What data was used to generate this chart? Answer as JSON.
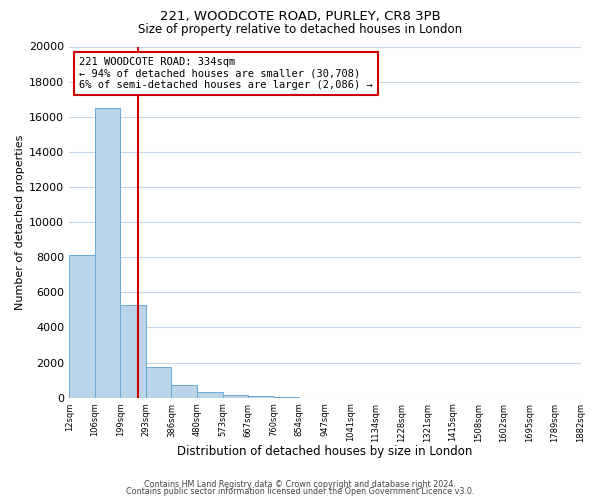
{
  "title1": "221, WOODCOTE ROAD, PURLEY, CR8 3PB",
  "title2": "Size of property relative to detached houses in London",
  "xlabel": "Distribution of detached houses by size in London",
  "ylabel": "Number of detached properties",
  "bar_heights": [
    8100,
    16500,
    5300,
    1750,
    750,
    300,
    150,
    100,
    50,
    0,
    0,
    0,
    0,
    0,
    0,
    0,
    0,
    0,
    0,
    0
  ],
  "bin_labels": [
    "12sqm",
    "106sqm",
    "199sqm",
    "293sqm",
    "386sqm",
    "480sqm",
    "573sqm",
    "667sqm",
    "760sqm",
    "854sqm",
    "947sqm",
    "1041sqm",
    "1134sqm",
    "1228sqm",
    "1321sqm",
    "1415sqm",
    "1508sqm",
    "1602sqm",
    "1695sqm",
    "1789sqm",
    "1882sqm"
  ],
  "bar_color": "#bcd4ea",
  "bar_edge_color": "#6aaad4",
  "vline_x_bin": 2.7,
  "vline_color": "#cc0000",
  "annotation_title": "221 WOODCOTE ROAD: 334sqm",
  "annotation_line1": "← 94% of detached houses are smaller (30,708)",
  "annotation_line2": "6% of semi-detached houses are larger (2,086) →",
  "annotation_box_color": "#cc0000",
  "ylim": [
    0,
    20000
  ],
  "yticks": [
    0,
    2000,
    4000,
    6000,
    8000,
    10000,
    12000,
    14000,
    16000,
    18000,
    20000
  ],
  "footer1": "Contains HM Land Registry data © Crown copyright and database right 2024.",
  "footer2": "Contains public sector information licensed under the Open Government Licence v3.0.",
  "background_color": "#ffffff",
  "grid_color": "#c8d8e8"
}
